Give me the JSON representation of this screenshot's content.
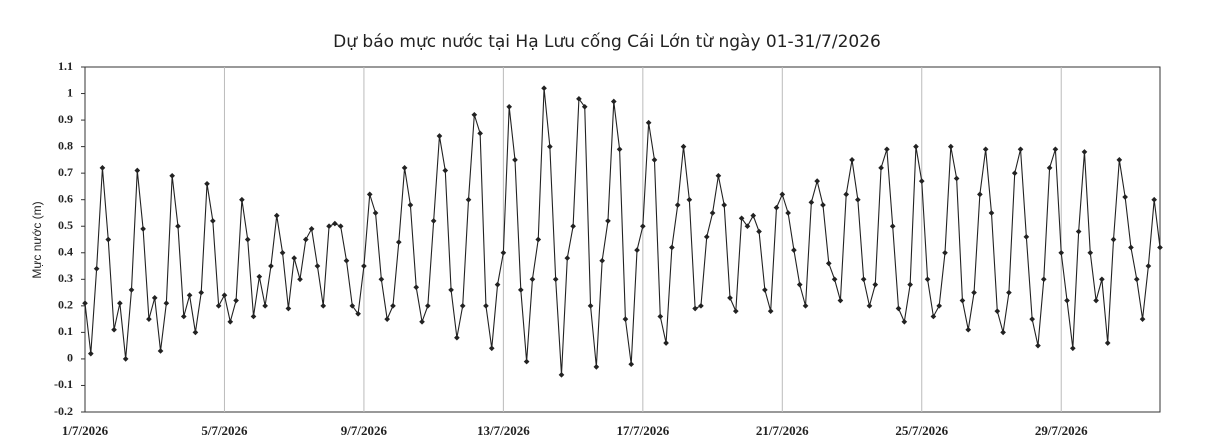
{
  "chart_data": {
    "type": "line",
    "title": "Dự báo mực nước tại Hạ Lưu cống Cái Lớn từ ngày 01-31/7/2026",
    "y_label": "Mực nước (m)",
    "categories": [
      "1/7/2026",
      null,
      null,
      null,
      null,
      null,
      null,
      null,
      null,
      null,
      null,
      null,
      null,
      null,
      null,
      null,
      null,
      null,
      null,
      null,
      null,
      null,
      null,
      null,
      "5/7/2026",
      null,
      null,
      null,
      null,
      null,
      null,
      null,
      null,
      null,
      null,
      null,
      null,
      null,
      null,
      null,
      null,
      null,
      null,
      null,
      null,
      null,
      null,
      null,
      "9/7/2026",
      null,
      null,
      null,
      null,
      null,
      null,
      null,
      null,
      null,
      null,
      null,
      null,
      null,
      null,
      null,
      null,
      null,
      null,
      null,
      null,
      null,
      null,
      null,
      "13/7/2026",
      null,
      null,
      null,
      null,
      null,
      null,
      null,
      null,
      null,
      null,
      null,
      null,
      null,
      null,
      null,
      null,
      null,
      null,
      null,
      null,
      null,
      null,
      null,
      "17/7/2026",
      null,
      null,
      null,
      null,
      null,
      null,
      null,
      null,
      null,
      null,
      null,
      null,
      null,
      null,
      null,
      null,
      null,
      null,
      null,
      null,
      null,
      null,
      null,
      "21/7/2026",
      null,
      null,
      null,
      null,
      null,
      null,
      null,
      null,
      null,
      null,
      null,
      null,
      null,
      null,
      null,
      null,
      null,
      null,
      null,
      null,
      null,
      null,
      null,
      "25/7/2026",
      null,
      null,
      null,
      null,
      null,
      null,
      null,
      null,
      null,
      null,
      null,
      null,
      null,
      null,
      null,
      null,
      null,
      null,
      null,
      null,
      null,
      null,
      null,
      "29/7/2026",
      null,
      null,
      null,
      null,
      null,
      null,
      null,
      null,
      null,
      null,
      null,
      null,
      null,
      null,
      null,
      null,
      null
    ],
    "series": [
      {
        "name": "Mực nước",
        "color": "#222222",
        "values": [
          0.21,
          0.02,
          0.34,
          0.72,
          0.45,
          0.11,
          0.21,
          0.0,
          0.26,
          0.71,
          0.49,
          0.15,
          0.23,
          0.03,
          0.21,
          0.69,
          0.5,
          0.16,
          0.24,
          0.1,
          0.25,
          0.66,
          0.52,
          0.2,
          0.24,
          0.14,
          0.22,
          0.6,
          0.45,
          0.16,
          0.31,
          0.2,
          0.35,
          0.54,
          0.4,
          0.19,
          0.38,
          0.3,
          0.45,
          0.49,
          0.35,
          0.2,
          0.5,
          0.51,
          0.5,
          0.37,
          0.2,
          0.17,
          0.35,
          0.62,
          0.55,
          0.3,
          0.15,
          0.2,
          0.44,
          0.72,
          0.58,
          0.27,
          0.14,
          0.2,
          0.52,
          0.84,
          0.71,
          0.26,
          0.08,
          0.2,
          0.6,
          0.92,
          0.85,
          0.2,
          0.04,
          0.28,
          0.4,
          0.95,
          0.75,
          0.26,
          -0.01,
          0.3,
          0.45,
          1.02,
          0.8,
          0.3,
          -0.06,
          0.38,
          0.5,
          0.98,
          0.95,
          0.2,
          -0.03,
          0.37,
          0.52,
          0.97,
          0.79,
          0.15,
          -0.02,
          0.41,
          0.5,
          0.89,
          0.75,
          0.16,
          0.06,
          0.42,
          0.58,
          0.8,
          0.6,
          0.19,
          0.2,
          0.46,
          0.55,
          0.69,
          0.58,
          0.23,
          0.18,
          0.53,
          0.5,
          0.54,
          0.48,
          0.26,
          0.18,
          0.57,
          0.62,
          0.55,
          0.41,
          0.28,
          0.2,
          0.59,
          0.67,
          0.58,
          0.36,
          0.3,
          0.22,
          0.62,
          0.75,
          0.6,
          0.3,
          0.2,
          0.28,
          0.72,
          0.79,
          0.5,
          0.19,
          0.14,
          0.28,
          0.8,
          0.67,
          0.3,
          0.16,
          0.2,
          0.4,
          0.8,
          0.68,
          0.22,
          0.11,
          0.25,
          0.62,
          0.79,
          0.55,
          0.18,
          0.1,
          0.25,
          0.7,
          0.79,
          0.46,
          0.15,
          0.05,
          0.3,
          0.72,
          0.79,
          0.4,
          0.22,
          0.04,
          0.48,
          0.78,
          0.4,
          0.22,
          0.3,
          0.06,
          0.45,
          0.75,
          0.61,
          0.42,
          0.3,
          0.15,
          0.35,
          0.6,
          0.42
        ]
      }
    ],
    "ylim": [
      -0.2,
      1.1
    ],
    "yticks": [
      1.1,
      1,
      0.9,
      0.8,
      0.7,
      0.6,
      0.5,
      0.4,
      0.3,
      0.2,
      0.1,
      0,
      -0.1,
      -0.2
    ],
    "xgrid": true
  }
}
